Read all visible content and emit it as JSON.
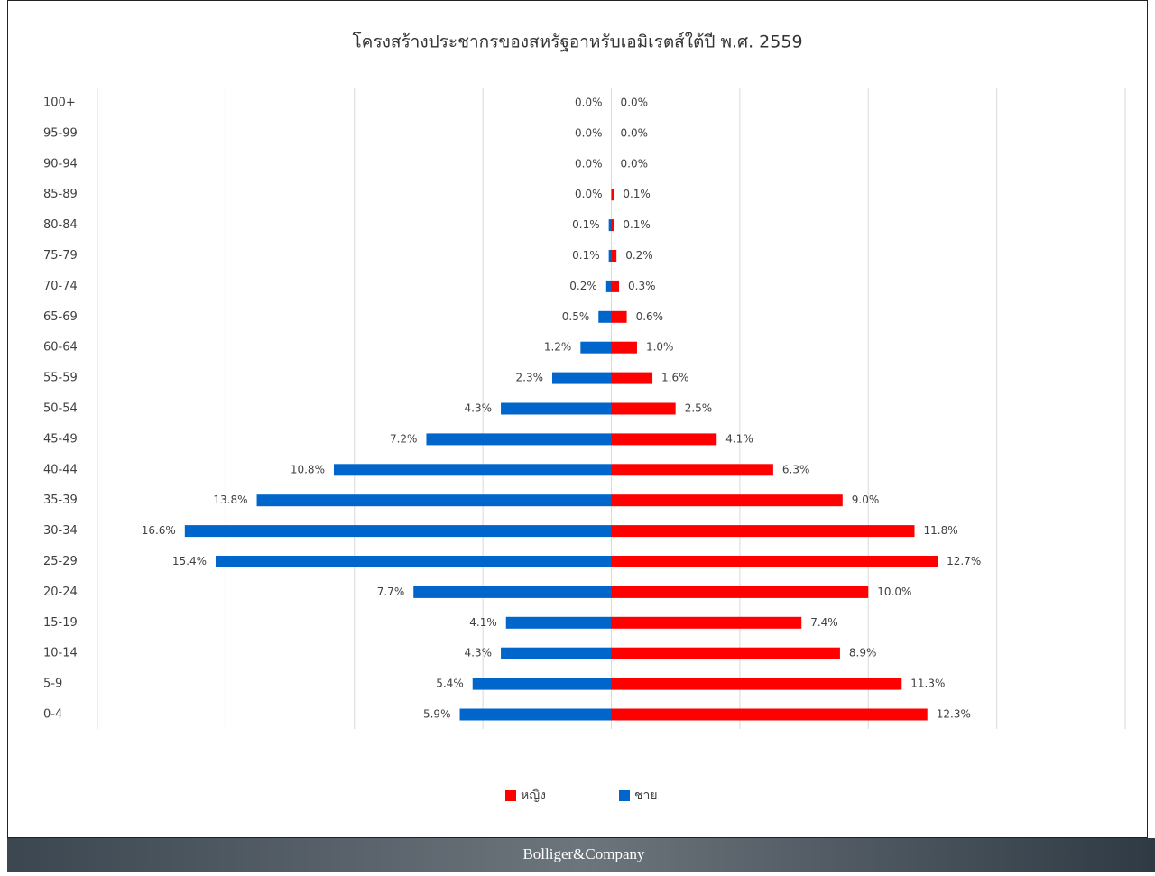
{
  "chart_data": {
    "type": "pyramid",
    "title": "โครงสร้างประชากรของสหรัฐอาหรับเอมิเรตส์ใต้ปี พ.ศ. 2559",
    "categories": [
      "100+",
      "95-99",
      "90-94",
      "85-89",
      "80-84",
      "75-79",
      "70-74",
      "65-69",
      "60-64",
      "55-59",
      "50-54",
      "45-49",
      "40-44",
      "35-39",
      "30-34",
      "25-29",
      "20-24",
      "15-19",
      "10-14",
      "5-9",
      "0-4"
    ],
    "series": [
      {
        "name": "หญิง",
        "color": "#ff0000",
        "side": "right",
        "values": [
          0.0,
          0.0,
          0.0,
          0.1,
          0.1,
          0.2,
          0.3,
          0.6,
          1.0,
          1.6,
          2.5,
          4.1,
          6.3,
          9.0,
          11.8,
          12.7,
          10.0,
          7.4,
          8.9,
          11.3,
          12.3
        ],
        "value_labels": [
          "0.0%",
          "0.0%",
          "0.0%",
          "0.1%",
          "0.1%",
          "0.2%",
          "0.3%",
          "0.6%",
          "1.0%",
          "1.6%",
          "2.5%",
          "4.1%",
          "6.3%",
          "9.0%",
          "11.8%",
          "12.7%",
          "10.0%",
          "7.4%",
          "8.9%",
          "11.3%",
          "12.3%"
        ]
      },
      {
        "name": "ชาย",
        "color": "#0066cc",
        "side": "left",
        "values": [
          0.0,
          0.0,
          0.0,
          0.0,
          0.1,
          0.1,
          0.2,
          0.5,
          1.2,
          2.3,
          4.3,
          7.2,
          10.8,
          13.8,
          16.6,
          15.4,
          7.7,
          4.1,
          4.3,
          5.4,
          5.9
        ],
        "value_labels": [
          "0.0%",
          "0.0%",
          "0.0%",
          "0.0%",
          "0.1%",
          "0.1%",
          "0.2%",
          "0.5%",
          "1.2%",
          "2.3%",
          "4.3%",
          "7.2%",
          "10.8%",
          "13.8%",
          "16.6%",
          "15.4%",
          "7.7%",
          "4.1%",
          "4.3%",
          "5.4%",
          "5.9%"
        ]
      }
    ],
    "xlim": [
      -20,
      20
    ],
    "xticks": [
      -20,
      -15,
      -10,
      -5,
      0,
      5,
      10,
      15,
      20
    ],
    "grid": true,
    "legend": "bottom"
  },
  "footer": "Bolliger&Company"
}
